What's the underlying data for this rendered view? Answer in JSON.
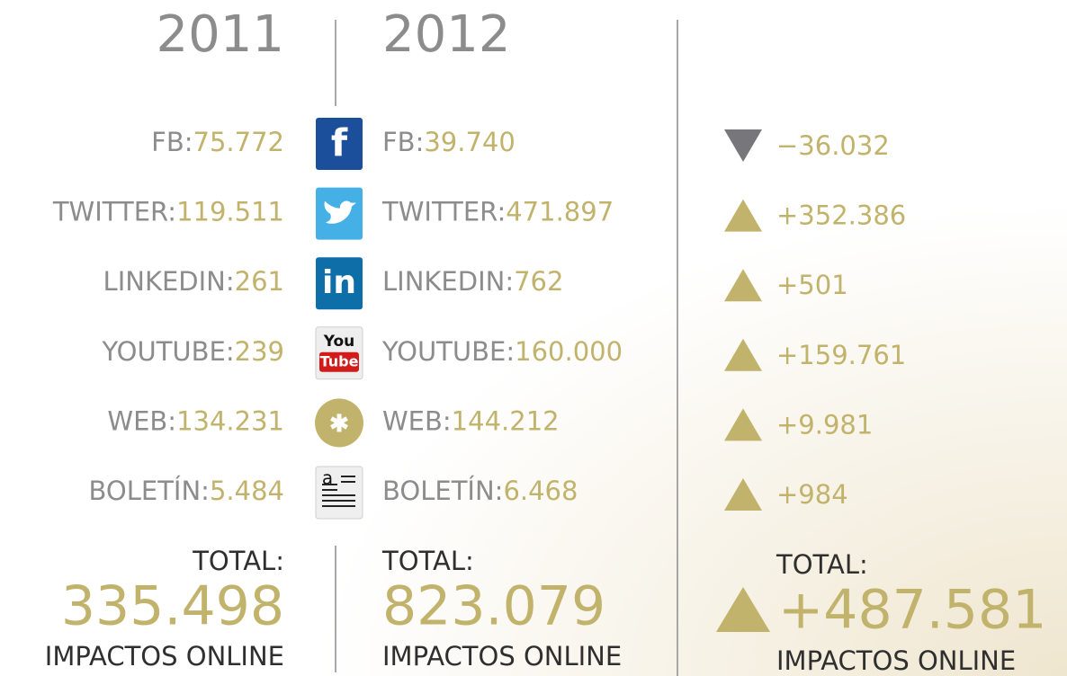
{
  "years": [
    "2011",
    "2012"
  ],
  "rows": [
    {
      "label": "FB:",
      "v2011": "75.772",
      "v2012": "39.740",
      "diff": "−36.032",
      "trend": "down",
      "icon_text": [
        "f"
      ]
    },
    {
      "label": "TWITTER:",
      "v2011": "119.511",
      "v2012": "471.897",
      "diff": "+352.386",
      "trend": "up"
    },
    {
      "label": "LINKEDIN:",
      "v2011": "261",
      "v2012": "762",
      "diff": "+501",
      "trend": "up",
      "icon_text": [
        "in"
      ]
    },
    {
      "label": "YOUTUBE:",
      "v2011": "239",
      "v2012": "160.000",
      "diff": "+159.761",
      "trend": "up",
      "icon_text": [
        "You",
        "Tube"
      ]
    },
    {
      "label": "WEB:",
      "v2011": "134.231",
      "v2012": "144.212",
      "diff": "+9.981",
      "trend": "up"
    },
    {
      "label": "BOLETÍN:",
      "v2011": "5.484",
      "v2012": "6.468",
      "diff": "+984",
      "trend": "up",
      "icon_text": [
        "a"
      ]
    }
  ],
  "totals": {
    "label": "TOTAL:",
    "v2011": "335.498",
    "v2012": "823.079",
    "diff": "+487.581",
    "trend": "up",
    "caption": "IMPACTOS ONLINE"
  }
}
